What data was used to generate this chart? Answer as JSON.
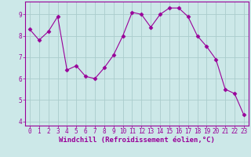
{
  "x": [
    0,
    1,
    2,
    3,
    4,
    5,
    6,
    7,
    8,
    9,
    10,
    11,
    12,
    13,
    14,
    15,
    16,
    17,
    18,
    19,
    20,
    21,
    22,
    23
  ],
  "y": [
    8.3,
    7.8,
    8.2,
    8.9,
    6.4,
    6.6,
    6.1,
    6.0,
    6.5,
    7.1,
    8.0,
    9.1,
    9.0,
    8.4,
    9.0,
    9.3,
    9.3,
    8.9,
    8.0,
    7.5,
    6.9,
    5.5,
    5.3,
    4.3
  ],
  "line_color": "#990099",
  "marker": "D",
  "marker_size": 2.5,
  "bg_color": "#cce8e8",
  "grid_color": "#aacccc",
  "xlabel": "Windchill (Refroidissement éolien,°C)",
  "ylabel": "",
  "ylim": [
    3.8,
    9.6
  ],
  "xlim": [
    -0.5,
    23.5
  ],
  "yticks": [
    4,
    5,
    6,
    7,
    8,
    9
  ],
  "xticks": [
    0,
    1,
    2,
    3,
    4,
    5,
    6,
    7,
    8,
    9,
    10,
    11,
    12,
    13,
    14,
    15,
    16,
    17,
    18,
    19,
    20,
    21,
    22,
    23
  ],
  "tick_label_fontsize": 5.5,
  "xlabel_fontsize": 6.5
}
